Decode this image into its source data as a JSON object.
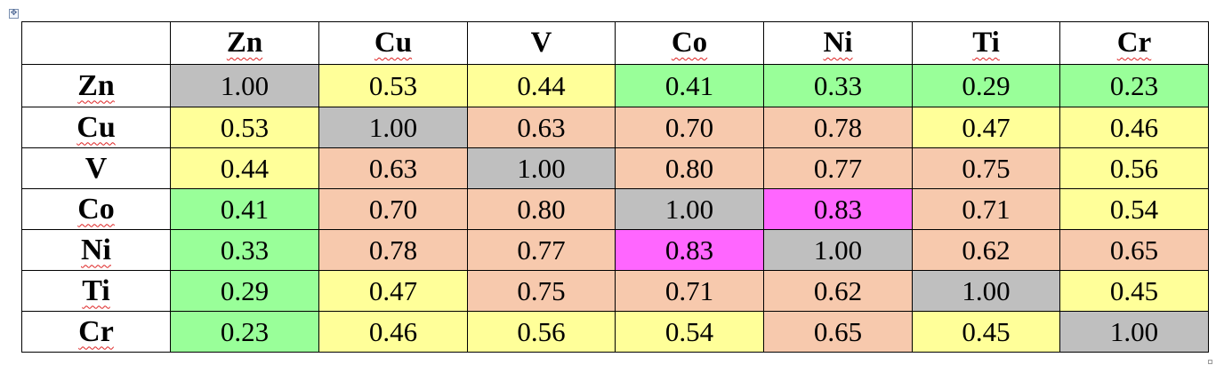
{
  "table": {
    "columns": [
      "Zn",
      "Cu",
      "V",
      "Co",
      "Ni",
      "Ti",
      "Cr"
    ],
    "rows": [
      {
        "label": "Zn",
        "values": [
          "1.00",
          "0.53",
          "0.44",
          "0.41",
          "0.33",
          "0.29",
          "0.23"
        ]
      },
      {
        "label": "Cu",
        "values": [
          "0.53",
          "1.00",
          "0.63",
          "0.70",
          "0.78",
          "0.47",
          "0.46"
        ]
      },
      {
        "label": "V",
        "values": [
          "0.44",
          "0.63",
          "1.00",
          "0.80",
          "0.77",
          "0.75",
          "0.56"
        ]
      },
      {
        "label": "Co",
        "values": [
          "0.41",
          "0.70",
          "0.80",
          "1.00",
          "0.83",
          "0.71",
          "0.54"
        ]
      },
      {
        "label": "Ni",
        "values": [
          "0.33",
          "0.78",
          "0.77",
          "0.83",
          "1.00",
          "0.62",
          "0.65"
        ]
      },
      {
        "label": "Ti",
        "values": [
          "0.29",
          "0.47",
          "0.75",
          "0.71",
          "0.62",
          "1.00",
          "0.45"
        ]
      },
      {
        "label": "Cr",
        "values": [
          "0.23",
          "0.46",
          "0.56",
          "0.54",
          "0.65",
          "0.45",
          "1.00"
        ]
      }
    ],
    "cell_color_classes": [
      [
        "gray",
        "yellow",
        "yellow",
        "green",
        "green",
        "green",
        "green"
      ],
      [
        "yellow",
        "gray",
        "peach",
        "peach",
        "peach",
        "yellow",
        "yellow"
      ],
      [
        "yellow",
        "peach",
        "gray",
        "peach",
        "peach",
        "peach",
        "yellow"
      ],
      [
        "green",
        "peach",
        "peach",
        "gray",
        "magenta",
        "peach",
        "yellow"
      ],
      [
        "green",
        "peach",
        "peach",
        "magenta",
        "gray",
        "peach",
        "peach"
      ],
      [
        "green",
        "yellow",
        "peach",
        "peach",
        "peach",
        "gray",
        "yellow"
      ],
      [
        "green",
        "yellow",
        "yellow",
        "yellow",
        "peach",
        "yellow",
        "gray"
      ]
    ],
    "palette": {
      "gray": "#bfbfbf",
      "yellow": "#ffff99",
      "green": "#99ff99",
      "peach": "#f7c9ad",
      "magenta": "#ff66ff"
    }
  }
}
